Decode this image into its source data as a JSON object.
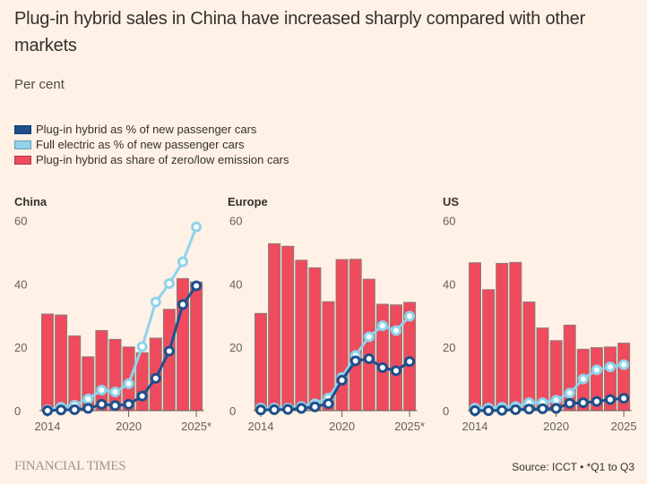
{
  "title": "Plug-in hybrid sales in China have increased sharply compared with other markets",
  "subtitle": "Per cent",
  "legend": [
    {
      "label": "Plug-in hybrid as % of new passenger cars",
      "color": "#1e4f8b"
    },
    {
      "label": "Full electric as % of new passenger cars",
      "color": "#8fd3ec"
    },
    {
      "label": "Plug-in hybrid as share of zero/low emission cars",
      "color": "#f04a5e"
    }
  ],
  "colors": {
    "bar": "#f04a5e",
    "bar_outline": "#8c7d75",
    "phev_line": "#1e4f8b",
    "bev_line": "#8fd3ec",
    "axis": "#66605c",
    "background": "#fff1e5"
  },
  "footer": {
    "brand": "FINANCIAL TIMES",
    "source": "Source: ICCT • *Q1 to Q3"
  },
  "chart_data": [
    {
      "type": "bar",
      "title": "China",
      "x": [
        2014,
        2015,
        2016,
        2017,
        2018,
        2019,
        2020,
        2021,
        2022,
        2023,
        2024,
        2025
      ],
      "x_tick_labels": [
        "2014",
        "2020",
        "2025*"
      ],
      "x_tick_values": [
        2014,
        2020,
        2025
      ],
      "ylim": [
        0,
        60
      ],
      "y_ticks": [
        0,
        20,
        40,
        60
      ],
      "series": [
        {
          "name": "Plug-in hybrid as share of zero/low emission cars",
          "kind": "bar",
          "values": [
            30.5,
            30.2,
            23.6,
            17.0,
            25.3,
            22.5,
            20.1,
            18.3,
            22.9,
            32.0,
            41.7,
            40.6
          ]
        },
        {
          "name": "Full electric as % of new passenger cars",
          "kind": "line",
          "values": [
            0.3,
            1.1,
            1.7,
            3.7,
            6.5,
            5.9,
            8.5,
            20.2,
            34.3,
            40.1,
            47.0,
            58.0
          ]
        },
        {
          "name": "Plug-in hybrid as % of new passenger cars",
          "kind": "line",
          "values": [
            0.0,
            0.2,
            0.3,
            0.7,
            2.0,
            1.6,
            2.0,
            4.6,
            10.2,
            18.8,
            33.5,
            39.4
          ]
        }
      ]
    },
    {
      "type": "bar",
      "title": "Europe",
      "x": [
        2014,
        2015,
        2016,
        2017,
        2018,
        2019,
        2020,
        2021,
        2022,
        2023,
        2024,
        2025
      ],
      "x_tick_labels": [
        "2014",
        "2020",
        "2025*"
      ],
      "x_tick_values": [
        2014,
        2020,
        2025
      ],
      "ylim": [
        0,
        60
      ],
      "y_ticks": [
        0,
        20,
        40,
        60
      ],
      "series": [
        {
          "name": "Plug-in hybrid as share of zero/low emission cars",
          "kind": "bar",
          "values": [
            30.7,
            52.7,
            51.9,
            47.5,
            45.1,
            34.4,
            47.7,
            47.8,
            41.5,
            33.6,
            33.4,
            34.2
          ]
        },
        {
          "name": "Full electric as % of new passenger cars",
          "kind": "line",
          "values": [
            0.8,
            0.8,
            0.8,
            1.3,
            2.2,
            4.0,
            10.5,
            17.4,
            23.3,
            26.8,
            25.3,
            29.8
          ]
        },
        {
          "name": "Plug-in hybrid as % of new passenger cars",
          "kind": "line",
          "values": [
            0.2,
            0.3,
            0.4,
            0.7,
            1.2,
            2.2,
            9.6,
            15.7,
            16.4,
            13.6,
            12.6,
            15.5
          ]
        }
      ]
    },
    {
      "type": "bar",
      "title": "US",
      "x": [
        2014,
        2015,
        2016,
        2017,
        2018,
        2019,
        2020,
        2021,
        2022,
        2023,
        2024,
        2025
      ],
      "x_tick_labels": [
        "2014",
        "2020",
        "2025"
      ],
      "x_tick_values": [
        2014,
        2020,
        2025
      ],
      "ylim": [
        0,
        60
      ],
      "y_ticks": [
        0,
        20,
        40,
        60
      ],
      "series": [
        {
          "name": "Plug-in hybrid as share of zero/low emission cars",
          "kind": "bar",
          "values": [
            46.7,
            38.2,
            46.5,
            46.8,
            34.3,
            26.1,
            22.1,
            27.0,
            19.4,
            19.9,
            20.1,
            21.3
          ]
        },
        {
          "name": "Full electric as % of new passenger cars",
          "kind": "line",
          "values": [
            0.8,
            0.8,
            1.1,
            1.3,
            2.5,
            2.5,
            3.3,
            5.5,
            10.0,
            12.9,
            13.8,
            14.5
          ]
        },
        {
          "name": "Plug-in hybrid as % of new passenger cars",
          "kind": "line",
          "values": [
            0.0,
            0.0,
            0.1,
            0.3,
            0.5,
            0.6,
            0.7,
            2.3,
            2.5,
            2.9,
            3.5,
            3.9
          ]
        }
      ]
    }
  ]
}
